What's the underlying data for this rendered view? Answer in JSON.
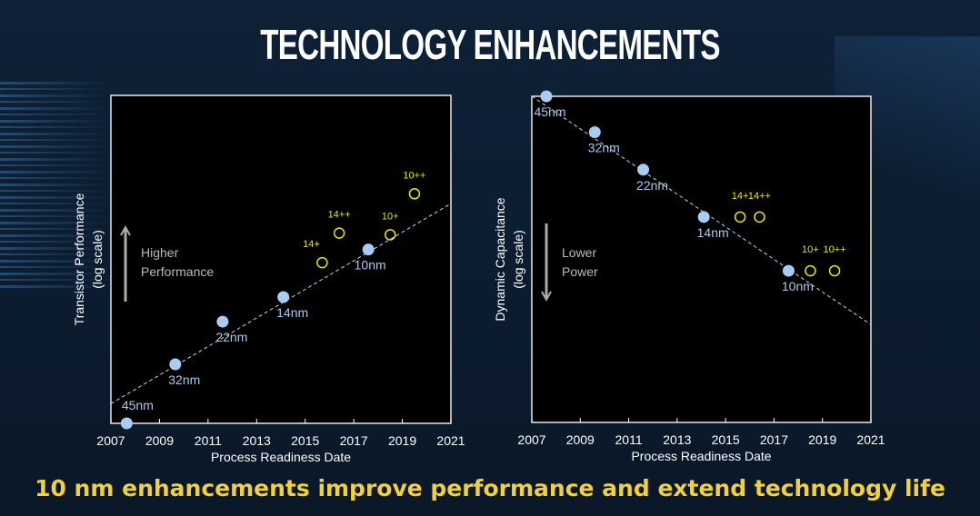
{
  "title": "TECHNOLOGY ENHANCEMENTS",
  "subtitle": "10 nm enhancements improve performance and extend technology life",
  "colors": {
    "node_fill": "#a9cdf2",
    "enhancement_stroke": "#e8e800",
    "trend_line": "#c8d6e6",
    "plot_bg": "#000000",
    "subtitle": "#f2d03b"
  },
  "chart_data": [
    {
      "type": "scatter",
      "xlabel": "Process Readiness Date",
      "ylabel": "Transistor Performance",
      "ylabel_sub": "(log scale)",
      "y_scale": "log",
      "y_note": "relative position on unlabeled axis (0 = bottom, 1 = top)",
      "xlim": [
        2007,
        2021
      ],
      "xticks": [
        "2007",
        "2009",
        "2011",
        "2013",
        "2015",
        "2017",
        "2019",
        "2021"
      ],
      "annotation": [
        "Higher",
        "Performance"
      ],
      "arrow": "up",
      "grid": false,
      "trend_line": {
        "x": [
          2007,
          2021
        ],
        "y": [
          0.06,
          0.67
        ]
      },
      "series": [
        {
          "name": "nodes",
          "marker": "filled-circle",
          "points": [
            {
              "label": "45nm",
              "x": 2007.65,
              "y": 0.0
            },
            {
              "label": "32nm",
              "x": 2009.65,
              "y": 0.18
            },
            {
              "label": "22nm",
              "x": 2011.6,
              "y": 0.31
            },
            {
              "label": "14nm",
              "x": 2014.1,
              "y": 0.385
            },
            {
              "label": "10nm",
              "x": 2017.6,
              "y": 0.53
            }
          ]
        },
        {
          "name": "enhancements",
          "marker": "open-circle",
          "points": [
            {
              "label": "14+",
              "x": 2015.7,
              "y": 0.49
            },
            {
              "label": "14++",
              "x": 2016.4,
              "y": 0.58
            },
            {
              "label": "10+",
              "x": 2018.5,
              "y": 0.575
            },
            {
              "label": "10++",
              "x": 2019.5,
              "y": 0.7
            }
          ]
        }
      ]
    },
    {
      "type": "scatter",
      "xlabel": "Process Readiness Date",
      "ylabel": "Dynamic Capacitance",
      "ylabel_sub": "(log scale)",
      "y_scale": "log",
      "y_note": "relative position on unlabeled axis (0 = bottom, 1 = top)",
      "xlim": [
        2007,
        2021
      ],
      "xticks": [
        "2007",
        "2009",
        "2011",
        "2013",
        "2015",
        "2017",
        "2019",
        "2021"
      ],
      "annotation": [
        "Lower",
        "Power"
      ],
      "arrow": "down",
      "grid": false,
      "trend_line": {
        "x": [
          2007,
          2021
        ],
        "y": [
          1.0,
          0.3
        ]
      },
      "series": [
        {
          "name": "nodes",
          "marker": "filled-circle",
          "points": [
            {
              "label": "45nm",
              "x": 2007.6,
              "y": 1.0
            },
            {
              "label": "32nm",
              "x": 2009.6,
              "y": 0.89
            },
            {
              "label": "22nm",
              "x": 2011.6,
              "y": 0.775
            },
            {
              "label": "14nm",
              "x": 2014.1,
              "y": 0.63
            },
            {
              "label": "10nm",
              "x": 2017.6,
              "y": 0.465
            }
          ]
        },
        {
          "name": "enhancements",
          "marker": "open-circle",
          "points": [
            {
              "label": "14+",
              "x": 2015.6,
              "y": 0.63
            },
            {
              "label": "14++",
              "x": 2016.4,
              "y": 0.63
            },
            {
              "label": "10+",
              "x": 2018.5,
              "y": 0.465
            },
            {
              "label": "10++",
              "x": 2019.5,
              "y": 0.465
            }
          ]
        }
      ]
    }
  ]
}
